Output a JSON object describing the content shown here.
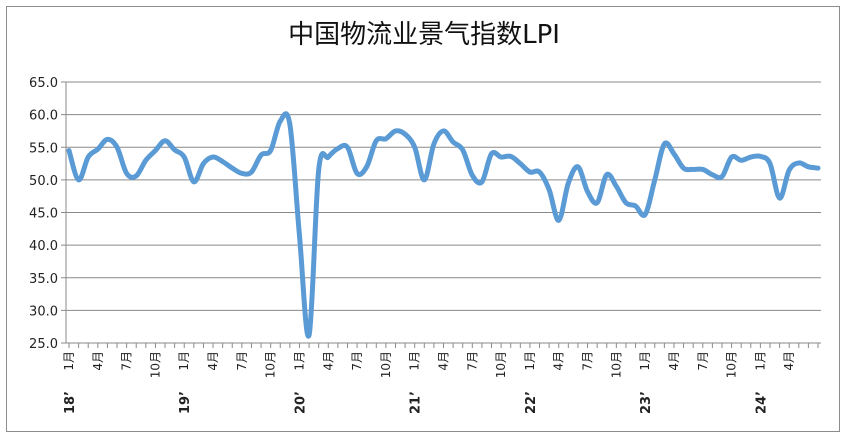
{
  "chart_data": {
    "type": "line",
    "title": "中国物流业景气指数LPI",
    "xlabel": "",
    "ylabel": "",
    "ylim": [
      25.0,
      65.0
    ],
    "yticks": [
      "65.0",
      "60.0",
      "55.0",
      "50.0",
      "45.0",
      "40.0",
      "35.0",
      "30.0",
      "25.0"
    ],
    "grid": true,
    "legend": "none",
    "line_color": "#5b9bd5",
    "x_tick_labels": [
      {
        "index": 0,
        "text": "1月"
      },
      {
        "index": 3,
        "text": "4月"
      },
      {
        "index": 6,
        "text": "7月"
      },
      {
        "index": 9,
        "text": "10月"
      },
      {
        "index": 12,
        "text": "1月"
      },
      {
        "index": 15,
        "text": "4月"
      },
      {
        "index": 18,
        "text": "7月"
      },
      {
        "index": 21,
        "text": "10月"
      },
      {
        "index": 24,
        "text": "1月"
      },
      {
        "index": 27,
        "text": "4月"
      },
      {
        "index": 30,
        "text": "7月"
      },
      {
        "index": 33,
        "text": "10月"
      },
      {
        "index": 36,
        "text": "1月"
      },
      {
        "index": 39,
        "text": "4月"
      },
      {
        "index": 42,
        "text": "7月"
      },
      {
        "index": 45,
        "text": "10月"
      },
      {
        "index": 48,
        "text": "1月"
      },
      {
        "index": 51,
        "text": "4月"
      },
      {
        "index": 54,
        "text": "7月"
      },
      {
        "index": 57,
        "text": "10月"
      },
      {
        "index": 60,
        "text": "1月"
      },
      {
        "index": 63,
        "text": "4月"
      },
      {
        "index": 66,
        "text": "7月"
      },
      {
        "index": 69,
        "text": "10月"
      },
      {
        "index": 72,
        "text": "1月"
      },
      {
        "index": 75,
        "text": "4月"
      }
    ],
    "year_labels": [
      {
        "index": 0,
        "text": "18’"
      },
      {
        "index": 12,
        "text": "19’"
      },
      {
        "index": 24,
        "text": "20’"
      },
      {
        "index": 36,
        "text": "21’"
      },
      {
        "index": 48,
        "text": "22’"
      },
      {
        "index": 60,
        "text": "23’"
      },
      {
        "index": 72,
        "text": "24’"
      }
    ],
    "series": [
      {
        "values": [
          54.5,
          50.0,
          53.5,
          54.7,
          56.2,
          55.0,
          51.0,
          50.6,
          53.0,
          54.5,
          56.0,
          54.6,
          53.5,
          49.7,
          52.5,
          53.5,
          52.8,
          51.8,
          51.0,
          51.2,
          53.8,
          54.5,
          59.0,
          58.5,
          41.5,
          26.2,
          51.5,
          53.5,
          54.8,
          55.0,
          51.0,
          52.0,
          56.0,
          56.3,
          57.5,
          57.0,
          55.0,
          50.0,
          55.5,
          57.5,
          55.8,
          54.6,
          50.7,
          49.7,
          54.0,
          53.5,
          53.6,
          52.5,
          51.2,
          51.2,
          48.5,
          43.8,
          49.5,
          52.0,
          48.2,
          46.5,
          50.8,
          49.0,
          46.5,
          46.0,
          44.7,
          50.0,
          55.5,
          54.0,
          51.8,
          51.6,
          51.6,
          50.8,
          50.5,
          53.5,
          53.0,
          53.5,
          53.6,
          52.5,
          47.2,
          51.5,
          52.6,
          52.0,
          51.8
        ]
      }
    ]
  }
}
